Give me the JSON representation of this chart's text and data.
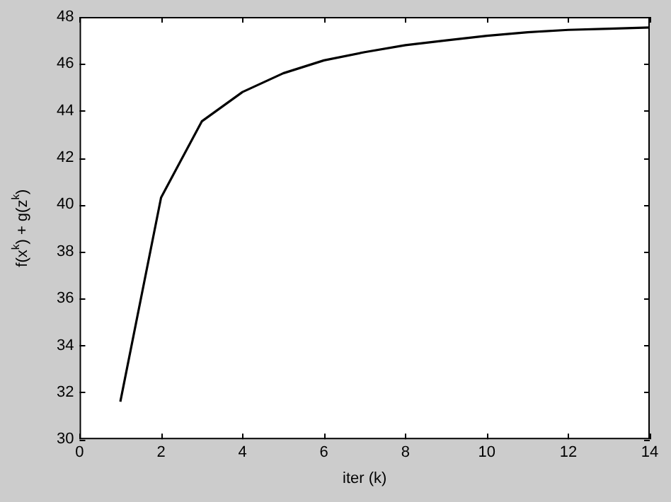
{
  "chart_data": {
    "type": "line",
    "xlabel": "iter (k)",
    "ylabel": "f(x$^{k}$) + g(z$^{k}$)",
    "x": [
      1,
      2,
      3,
      4,
      5,
      6,
      7,
      8,
      9,
      10,
      11,
      12,
      13,
      14
    ],
    "series": [
      {
        "color": "#000000",
        "values": [
          31.6,
          40.3,
          43.55,
          44.8,
          45.6,
          46.15,
          46.5,
          46.8,
          47.0,
          47.2,
          47.35,
          47.45,
          47.5,
          47.55
        ]
      }
    ],
    "xlim": [
      0,
      14
    ],
    "xticks": [
      0,
      2,
      4,
      6,
      8,
      10,
      12,
      14
    ],
    "ylim": [
      30,
      48
    ],
    "yticks": [
      30,
      32,
      34,
      36,
      38,
      40,
      42,
      44,
      46,
      48
    ],
    "grid": false,
    "legend": false,
    "marker": "none",
    "line_style": "solid"
  }
}
